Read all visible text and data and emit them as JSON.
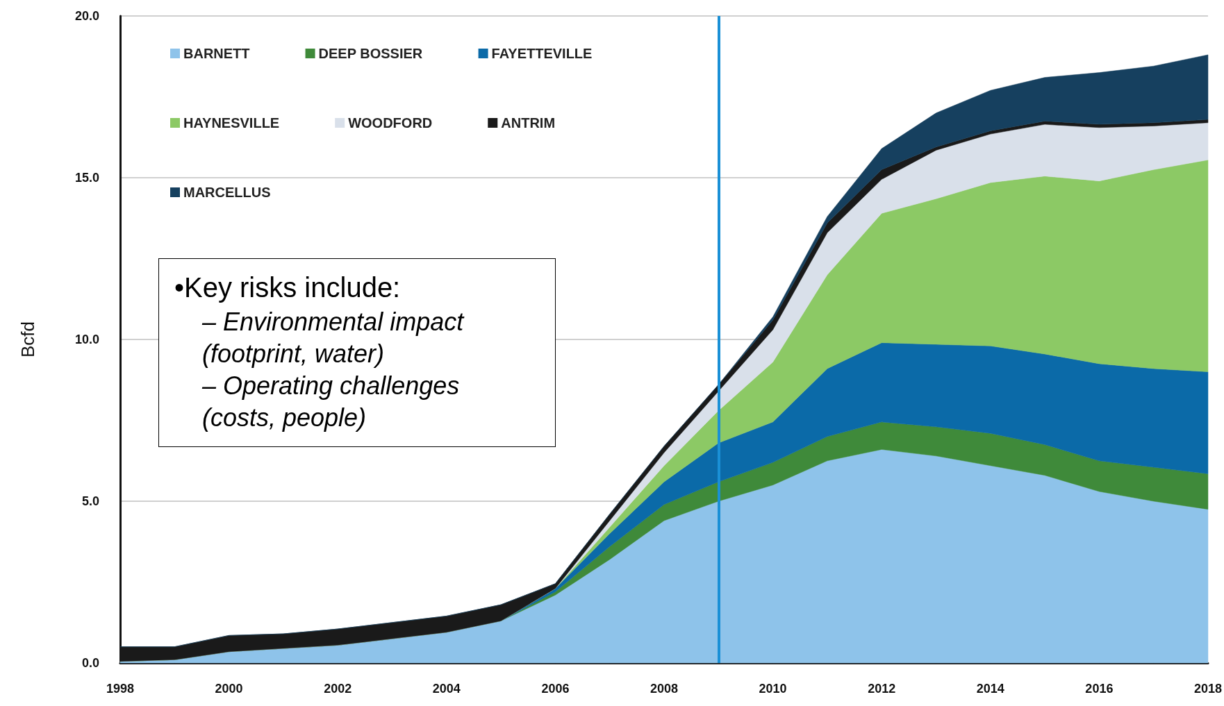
{
  "chart_data": {
    "type": "area",
    "stacked": true,
    "ylabel": "Bcfd",
    "x": [
      1998,
      1999,
      2000,
      2001,
      2002,
      2003,
      2004,
      2005,
      2006,
      2007,
      2008,
      2009,
      2010,
      2011,
      2012,
      2013,
      2014,
      2015,
      2016,
      2017,
      2018
    ],
    "series": [
      {
        "name": "BARNETT",
        "color": "#8ec3ea",
        "values": [
          0.05,
          0.1,
          0.35,
          0.45,
          0.55,
          0.75,
          0.95,
          1.3,
          2.1,
          3.2,
          4.4,
          5.0,
          5.5,
          6.25,
          6.6,
          6.4,
          6.1,
          5.8,
          5.3,
          5.0,
          4.75
        ]
      },
      {
        "name": "DEEP BOSSIER",
        "color": "#3f8a3a",
        "values": [
          0,
          0,
          0,
          0,
          0,
          0,
          0,
          0,
          0.1,
          0.4,
          0.5,
          0.6,
          0.7,
          0.75,
          0.85,
          0.9,
          1.0,
          0.95,
          0.95,
          1.05,
          1.1
        ]
      },
      {
        "name": "FAYETTEVILLE",
        "color": "#0b6aa8",
        "values": [
          0,
          0,
          0,
          0,
          0,
          0,
          0,
          0,
          0.1,
          0.4,
          0.7,
          1.2,
          1.25,
          2.1,
          2.45,
          2.55,
          2.7,
          2.8,
          3.0,
          3.05,
          3.15
        ]
      },
      {
        "name": "HAYNESVILLE",
        "color": "#8cc965",
        "values": [
          0,
          0,
          0,
          0,
          0,
          0,
          0,
          0,
          0,
          0.2,
          0.5,
          1.0,
          1.85,
          2.9,
          4.0,
          4.5,
          5.05,
          5.5,
          5.65,
          6.15,
          6.55
        ]
      },
      {
        "name": "WOODFORD",
        "color": "#d9e0ea",
        "values": [
          0,
          0,
          0,
          0,
          0,
          0,
          0,
          0,
          0,
          0.2,
          0.4,
          0.6,
          1.0,
          1.3,
          1.05,
          1.5,
          1.5,
          1.6,
          1.65,
          1.35,
          1.15
        ]
      },
      {
        "name": "ANTRIM",
        "color": "#1a1a1a",
        "values": [
          0.45,
          0.4,
          0.5,
          0.45,
          0.5,
          0.5,
          0.5,
          0.5,
          0.15,
          0.2,
          0.2,
          0.2,
          0.3,
          0.3,
          0.3,
          0.1,
          0.1,
          0.1,
          0.1,
          0.1,
          0.1
        ]
      },
      {
        "name": "MARCELLUS",
        "color": "#16405f",
        "values": [
          0,
          0,
          0,
          0,
          0,
          0,
          0,
          0,
          0,
          0,
          0,
          0,
          0.1,
          0.2,
          0.65,
          1.05,
          1.25,
          1.35,
          1.6,
          1.75,
          2.0
        ]
      }
    ],
    "xlim": [
      1998,
      2018
    ],
    "xticks": [
      1998,
      2000,
      2002,
      2004,
      2006,
      2008,
      2010,
      2012,
      2014,
      2016,
      2018
    ],
    "ylim": [
      0,
      20
    ],
    "yticks": [
      {
        "value": 0,
        "label": "0.0"
      },
      {
        "value": 5,
        "label": "5.0"
      },
      {
        "value": 10,
        "label": "10.0"
      },
      {
        "value": 15,
        "label": "15.0"
      },
      {
        "value": 20,
        "label": "20.0"
      }
    ],
    "grid": "y",
    "legend": "top left",
    "marker": "none",
    "ref_lines": [
      {
        "axis": "x",
        "value": 2009,
        "color": "#1a90d6"
      }
    ],
    "annotations": [
      "•Key risks include:",
      "– Environmental impact (footprint, water)",
      "– Operating challenges (costs, people)"
    ]
  }
}
